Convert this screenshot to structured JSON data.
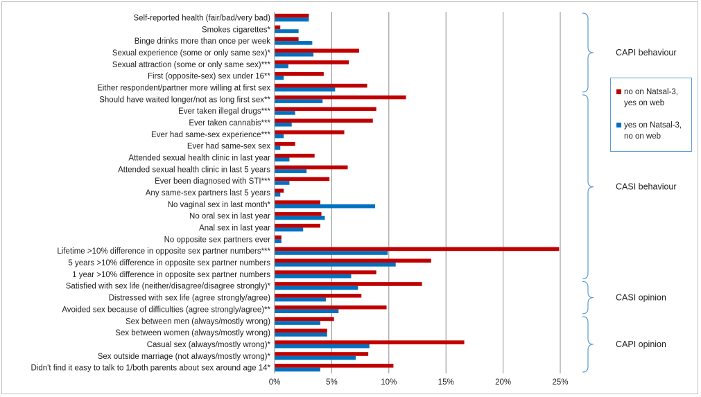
{
  "chart_data": {
    "type": "bar",
    "orientation": "horizontal",
    "categories": [
      "Self-reported health (fair/bad/very bad)",
      "Smokes cigarettes*",
      "Binge drinks more than once per week",
      "Sexual experience (some or only same sex)*",
      "Sexual attraction (some or only same sex)***",
      "First (opposite-sex) sex under 16**",
      "Either respondent/partner more willing at first sex",
      "Should have waited longer/not as long first sex**",
      "Ever taken illegal drugs***",
      "Ever taken cannabis***",
      "Ever had same-sex experience***",
      "Ever had same-sex sex",
      "Attended sexual health clinic in last year",
      "Attended sexual health clinic in last 5 years",
      "Ever been diagnosed with STI***",
      "Any same-sex partners last 5 years",
      "No vaginal sex in last month*",
      "No oral sex in last year",
      "Anal sex in last year",
      "No opposite sex partners ever",
      "Lifetime >10% difference in opposite sex partner numbers***",
      "5 years >10% difference in opposite sex partner numbers",
      "1 year >10% difference in opposite sex partner numbers",
      "Satisfied with sex life (neither/disagree/disagree strongly)*",
      "Distressed with sex life (agree strongly/agree)",
      "Avoided sex because of difficulties (agree strongly/agree)**",
      "Sex between men (always/mostly wrong)",
      "Sex between women (always/mostly wrong)",
      "Casual sex (always/mostly wrong)*",
      "Sex outside marriage (not always/mostly wrong)*",
      "Didn't find it easy to talk to 1/both parents about sex around age 14*"
    ],
    "series": [
      {
        "name": "no on Natsal-3, yes on web",
        "color": "#c00000",
        "values": [
          3.0,
          0.5,
          2.1,
          7.4,
          6.5,
          4.3,
          8.1,
          11.5,
          8.9,
          8.6,
          6.1,
          1.8,
          3.5,
          6.4,
          4.8,
          0.8,
          4.0,
          4.1,
          4.0,
          0.6,
          24.9,
          13.7,
          8.9,
          12.9,
          7.6,
          9.8,
          5.2,
          4.6,
          16.6,
          8.2,
          10.4
        ]
      },
      {
        "name": "yes on Natsal-3, no on web",
        "color": "#0070c0",
        "values": [
          3.0,
          2.1,
          3.3,
          3.4,
          1.2,
          0.8,
          5.3,
          4.2,
          1.8,
          1.5,
          0.8,
          0.5,
          1.3,
          2.8,
          1.3,
          0.5,
          8.8,
          4.4,
          2.5,
          0.6,
          9.9,
          10.6,
          6.7,
          7.3,
          4.5,
          5.6,
          4.0,
          4.6,
          8.3,
          7.1,
          4.0
        ]
      }
    ],
    "x_ticks": [
      "0%",
      "5%",
      "10%",
      "15%",
      "20%",
      "25%"
    ],
    "xlim": [
      0,
      25
    ],
    "grid": true,
    "legend_position": "right",
    "group_labels": [
      {
        "label": "CAPI behaviour",
        "from": 0,
        "to": 6
      },
      {
        "label": "CASI behaviour",
        "from": 7,
        "to": 22
      },
      {
        "label": "CASI opinion",
        "from": 23,
        "to": 25
      },
      {
        "label": "CAPI opinion",
        "from": 26,
        "to": 30
      }
    ]
  }
}
